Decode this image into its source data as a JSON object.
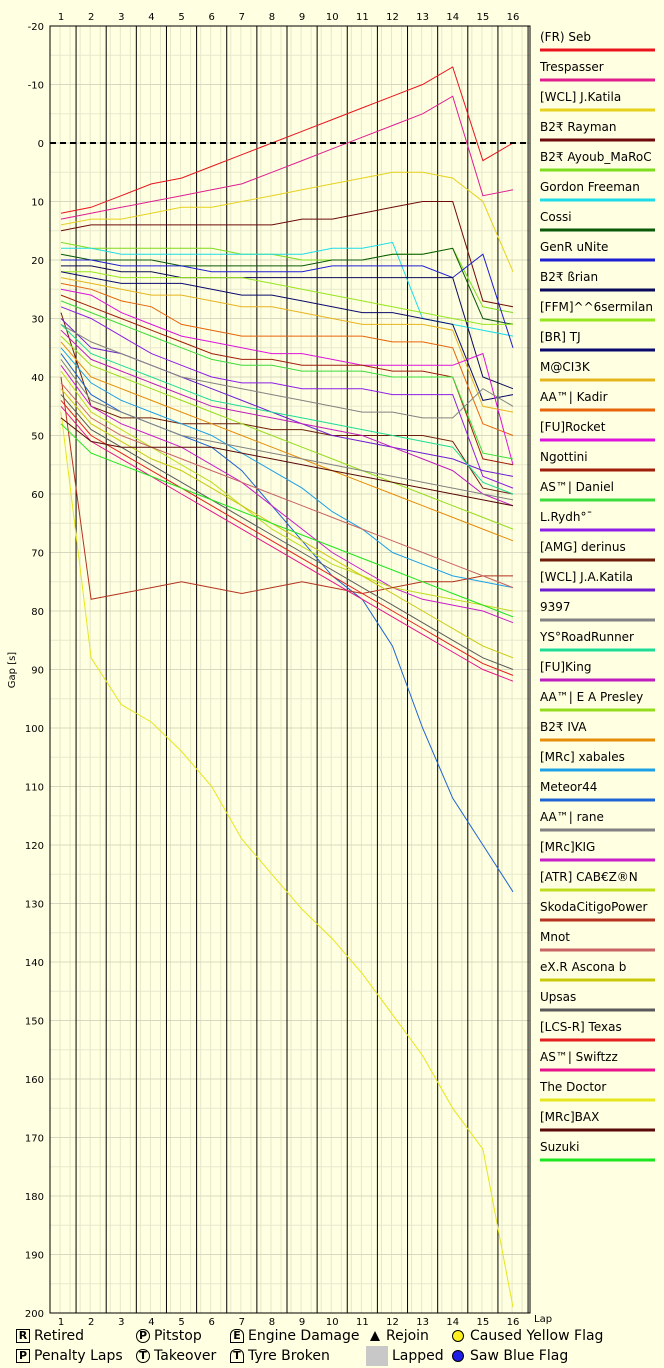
{
  "chart_data": {
    "type": "line",
    "ylabel": "Gap [s]",
    "xlabel": "Lap",
    "x_ticks": [
      1,
      2,
      3,
      4,
      5,
      6,
      7,
      8,
      9,
      10,
      11,
      12,
      13,
      14,
      15,
      16
    ],
    "ylim": [
      -20,
      200
    ],
    "y_ticks": [
      -20,
      -10,
      0,
      10,
      20,
      30,
      40,
      50,
      60,
      70,
      80,
      90,
      100,
      110,
      120,
      130,
      140,
      150,
      160,
      170,
      180,
      190,
      200
    ],
    "series": [
      {
        "name": "(FR) Seb",
        "color": "#E8141E",
        "values": [
          12,
          11,
          9,
          7,
          6,
          4,
          2,
          0,
          -2,
          -4,
          -6,
          -8,
          -10,
          -13,
          3,
          0
        ]
      },
      {
        "name": "Trespasser",
        "color": "#E01E90",
        "values": [
          13,
          12,
          11,
          10,
          9,
          8,
          7,
          5,
          3,
          1,
          -1,
          -3,
          -5,
          -8,
          9,
          8
        ]
      },
      {
        "name": "[WCL] J.Katila",
        "color": "#E6D21E",
        "values": [
          14,
          13,
          13,
          12,
          11,
          11,
          10,
          9,
          8,
          7,
          6,
          5,
          5,
          6,
          10,
          22
        ]
      },
      {
        "name": "B2₹ Rayman",
        "color": "#6E0A0A",
        "values": [
          15,
          14,
          14,
          14,
          14,
          14,
          14,
          14,
          13,
          13,
          12,
          11,
          10,
          10,
          27,
          28
        ]
      },
      {
        "name": "B2₹ Ayoub_MaRoC",
        "color": "#7DDC1E",
        "values": [
          17,
          18,
          18,
          18,
          18,
          18,
          19,
          19,
          20,
          20,
          20,
          19,
          19,
          18,
          28,
          29
        ]
      },
      {
        "name": "Gordon Freeman",
        "color": "#1EDCE6",
        "values": [
          18,
          18,
          19,
          19,
          19,
          19,
          19,
          19,
          19,
          18,
          18,
          17,
          30,
          31,
          32,
          33
        ]
      },
      {
        "name": "Cossi",
        "color": "#0A5A0A",
        "values": [
          19,
          20,
          20,
          20,
          21,
          21,
          21,
          21,
          21,
          20,
          20,
          19,
          19,
          18,
          30,
          31
        ]
      },
      {
        "name": "GenR uNite",
        "color": "#1E1ED2",
        "values": [
          20,
          20,
          21,
          21,
          21,
          22,
          22,
          22,
          22,
          21,
          21,
          21,
          21,
          23,
          19,
          35
        ]
      },
      {
        "name": "B2₹ ßrian",
        "color": "#0A0A5A",
        "values": [
          21,
          21,
          22,
          22,
          23,
          23,
          23,
          23,
          23,
          23,
          23,
          23,
          23,
          23,
          40,
          42
        ]
      },
      {
        "name": "[FFM]^^6sermilan",
        "color": "#96E61E",
        "values": [
          22,
          22,
          23,
          23,
          23,
          23,
          23,
          24,
          25,
          26,
          27,
          28,
          29,
          30,
          31,
          31
        ]
      },
      {
        "name": "[BR] TJ",
        "color": "#0A0A6E",
        "values": [
          22,
          23,
          24,
          24,
          24,
          25,
          26,
          26,
          27,
          28,
          29,
          29,
          30,
          31,
          44,
          43
        ]
      },
      {
        "name": "M@CI3K",
        "color": "#E6B41E",
        "values": [
          23,
          24,
          25,
          26,
          26,
          27,
          28,
          28,
          29,
          30,
          31,
          31,
          31,
          32,
          45,
          46
        ]
      },
      {
        "name": "AA™| Kadir",
        "color": "#E6640A",
        "values": [
          24,
          25,
          27,
          28,
          31,
          32,
          33,
          33,
          33,
          33,
          33,
          34,
          34,
          35,
          48,
          50
        ]
      },
      {
        "name": "[FU]Rocket",
        "color": "#DC14DC",
        "values": [
          25,
          26,
          29,
          31,
          33,
          34,
          35,
          36,
          36,
          37,
          38,
          38,
          38,
          38,
          36,
          55
        ]
      },
      {
        "name": "Ngottini",
        "color": "#A01E0A",
        "values": [
          26,
          28,
          30,
          32,
          34,
          36,
          37,
          37,
          38,
          38,
          38,
          39,
          39,
          40,
          54,
          55
        ]
      },
      {
        "name": "AS™| Daniel",
        "color": "#3CDC3C",
        "values": [
          27,
          29,
          31,
          33,
          35,
          37,
          38,
          38,
          39,
          39,
          39,
          40,
          40,
          40,
          53,
          54
        ]
      },
      {
        "name": "L.Rydh°¯",
        "color": "#8C1EE6",
        "values": [
          28,
          30,
          33,
          36,
          38,
          40,
          41,
          41,
          42,
          42,
          42,
          43,
          43,
          43,
          57,
          59
        ]
      },
      {
        "name": "[AMG] derinus",
        "color": "#6E1E0A",
        "values": [
          29,
          45,
          47,
          47,
          48,
          48,
          48,
          49,
          49,
          50,
          50,
          50,
          50,
          51,
          59,
          60
        ]
      },
      {
        "name": "[WCL] J.A.Katila",
        "color": "#6E1ED2",
        "values": [
          30,
          35,
          36,
          38,
          40,
          42,
          44,
          46,
          48,
          50,
          51,
          52,
          53,
          54,
          56,
          57
        ]
      },
      {
        "name": "9397",
        "color": "#828282",
        "values": [
          31,
          34,
          36,
          38,
          40,
          41,
          42,
          43,
          44,
          45,
          46,
          46,
          47,
          47,
          42,
          45
        ]
      },
      {
        "name": "YS°RoadRunner",
        "color": "#1EDC96",
        "values": [
          31,
          36,
          38,
          40,
          42,
          44,
          45,
          46,
          47,
          48,
          49,
          50,
          51,
          52,
          58,
          60
        ]
      },
      {
        "name": "[FU]King",
        "color": "#BE1EBE",
        "values": [
          32,
          37,
          39,
          41,
          43,
          45,
          46,
          47,
          48,
          49,
          50,
          52,
          54,
          56,
          60,
          62
        ]
      },
      {
        "name": "AA™| E A Presley",
        "color": "#96DC1E",
        "values": [
          33,
          38,
          40,
          42,
          44,
          46,
          48,
          50,
          52,
          54,
          56,
          58,
          60,
          62,
          64,
          66
        ]
      },
      {
        "name": "B2₹ IVA",
        "color": "#E68C0A",
        "values": [
          34,
          40,
          42,
          44,
          46,
          48,
          50,
          52,
          54,
          56,
          58,
          60,
          62,
          64,
          66,
          68
        ]
      },
      {
        "name": "[MRc] xabales",
        "color": "#1EA0E6",
        "values": [
          35,
          41,
          44,
          46,
          48,
          50,
          53,
          56,
          59,
          63,
          66,
          70,
          72,
          74,
          75,
          76
        ]
      },
      {
        "name": "Meteor44",
        "color": "#1E64D2",
        "values": [
          36,
          43,
          46,
          48,
          50,
          52,
          56,
          62,
          68,
          74,
          78,
          86,
          100,
          112,
          120,
          128
        ]
      },
      {
        "name": "AA™| rane",
        "color": "#828282",
        "values": [
          37,
          44,
          46,
          48,
          50,
          51,
          52,
          53,
          54,
          55,
          56,
          57,
          58,
          59,
          60,
          61
        ]
      },
      {
        "name": "[MRc]KIG",
        "color": "#C81EC8",
        "values": [
          38,
          45,
          48,
          50,
          52,
          55,
          58,
          62,
          66,
          70,
          73,
          76,
          78,
          79,
          80,
          82
        ]
      },
      {
        "name": "[ATR] CAB€Z®N",
        "color": "#BEDC1E",
        "values": [
          39,
          46,
          49,
          52,
          55,
          58,
          62,
          66,
          69,
          72,
          74,
          76,
          77,
          78,
          79,
          80
        ]
      },
      {
        "name": "SkodaCitigoPower",
        "color": "#B4321E",
        "values": [
          40,
          78,
          77,
          76,
          75,
          76,
          77,
          76,
          75,
          76,
          77,
          76,
          75,
          75,
          74,
          74
        ]
      },
      {
        "name": "Mnot",
        "color": "#C86464",
        "values": [
          41,
          47,
          50,
          52,
          54,
          56,
          58,
          60,
          62,
          64,
          66,
          68,
          70,
          72,
          74,
          76
        ]
      },
      {
        "name": "eX.R Ascona b",
        "color": "#C8C80A",
        "values": [
          42,
          48,
          51,
          54,
          56,
          59,
          62,
          65,
          68,
          71,
          74,
          77,
          80,
          83,
          86,
          88
        ]
      },
      {
        "name": "Upsas",
        "color": "#5A5A5A",
        "values": [
          43,
          49,
          52,
          55,
          58,
          61,
          64,
          67,
          70,
          73,
          76,
          79,
          82,
          85,
          88,
          90
        ]
      },
      {
        "name": "[LCS-R] Texas",
        "color": "#E61E1E",
        "values": [
          44,
          50,
          53,
          56,
          59,
          62,
          65,
          68,
          71,
          74,
          77,
          80,
          83,
          86,
          89,
          91
        ]
      },
      {
        "name": "AS™| Swiftzz",
        "color": "#E6148C",
        "values": [
          45,
          51,
          54,
          57,
          60,
          63,
          66,
          69,
          72,
          75,
          78,
          81,
          84,
          87,
          90,
          92
        ]
      },
      {
        "name": "The Doctor",
        "color": "#E6E61E",
        "values": [
          46,
          88,
          96,
          99,
          104,
          110,
          119,
          125,
          131,
          136,
          142,
          149,
          156,
          165,
          172,
          199
        ]
      },
      {
        "name": "[MRc]BAX",
        "color": "#5A0A0A",
        "values": [
          47,
          51,
          52,
          52,
          52,
          52,
          53,
          54,
          55,
          56,
          57,
          58,
          59,
          60,
          61,
          62
        ]
      },
      {
        "name": "Suzuki",
        "color": "#1EE61E",
        "values": [
          48,
          53,
          55,
          57,
          59,
          61,
          63,
          65,
          67,
          69,
          71,
          73,
          75,
          77,
          79,
          81
        ]
      }
    ]
  },
  "legend_bottom": {
    "retired": "Retired",
    "pitstop": "Pitstop",
    "engine_damage": "Engine Damage",
    "rejoin": "Rejoin",
    "caused_yellow": "Caused Yellow Flag",
    "penalty_laps": "Penalty Laps",
    "takeover": "Takeover",
    "tyre_broken": "Tyre Broken",
    "lapped": "Lapped",
    "saw_blue": "Saw Blue Flag"
  },
  "symbols": {
    "R": "R",
    "P": "P",
    "T": "T",
    "E": "E"
  }
}
